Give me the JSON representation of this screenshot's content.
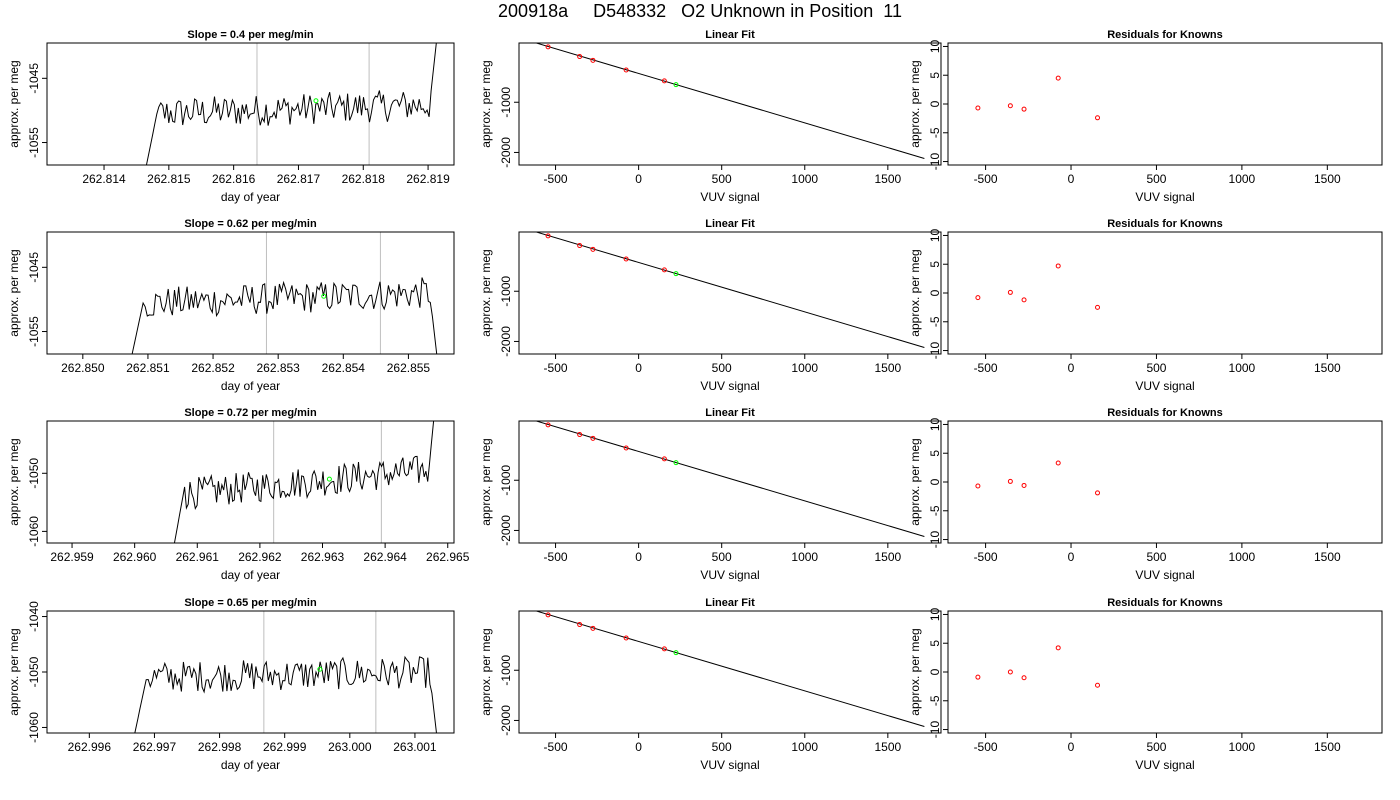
{
  "title": "200918a     D548332   O2 Unknown in Position  11",
  "colors": {
    "line": "#000000",
    "vline": "#bebebe",
    "known": "#ff0000",
    "unknown": "#00ff00"
  },
  "chart_data": [
    {
      "type": "line",
      "title": "Slope =  0.4  per meg/min",
      "xlabel": "day of year",
      "ylabel": "approx. per meg",
      "xlim": [
        262.81312,
        262.8194
      ],
      "ylim": [
        -1058.5,
        -1039.5
      ],
      "xticks": [
        "262.814",
        "262.815",
        "262.816",
        "262.817",
        "262.818",
        "262.819"
      ],
      "yticks": [
        "-1045",
        "-1055"
      ],
      "vlines": [
        262.81636,
        262.81809
      ],
      "start": 262.8146,
      "end": 262.8192,
      "base": -1049.8,
      "drift": 1.5,
      "marker": {
        "x": 262.81727,
        "y": -1048.5
      }
    },
    {
      "type": "line",
      "title": "Slope =  0.62  per meg/min",
      "xlabel": "day of year",
      "ylabel": "approx. per meg",
      "xlim": [
        262.84945,
        262.8557
      ],
      "ylim": [
        -1058.5,
        -1039.5
      ],
      "xticks": [
        "262.850",
        "262.851",
        "262.852",
        "262.853",
        "262.854",
        "262.855"
      ],
      "yticks": [
        "-1045",
        "-1055"
      ],
      "vlines": [
        262.85282,
        262.85457
      ],
      "start": 262.8507,
      "end": 262.85553,
      "base": -1049.8,
      "drift": 1.8,
      "marker": {
        "x": 262.8537,
        "y": -1049.5
      }
    },
    {
      "type": "line",
      "title": "Slope =  0.72  per meg/min",
      "xlabel": "day of year",
      "ylabel": "approx. per meg",
      "xlim": [
        262.9586,
        262.9651
      ],
      "ylim": [
        -1062,
        -1041
      ],
      "xticks": [
        "262.959",
        "262.960",
        "262.961",
        "262.962",
        "262.963",
        "262.964",
        "262.965"
      ],
      "yticks": [
        "-1050",
        "-1060"
      ],
      "vlines": [
        262.96222,
        262.96394
      ],
      "start": 262.9606,
      "end": 262.96485,
      "base": -1051.5,
      "drift": 4.5,
      "marker": {
        "x": 262.96311,
        "y": -1051.0
      }
    },
    {
      "type": "line",
      "title": "Slope =  0.65  per meg/min",
      "xlabel": "day of year",
      "ylabel": "approx. per meg",
      "xlim": [
        262.99535,
        263.0016
      ],
      "ylim": [
        -1061,
        -1039
      ],
      "xticks": [
        "262.996",
        "262.997",
        "262.998",
        "262.999",
        "263.000",
        "263.001"
      ],
      "yticks": [
        "-1040",
        "-1050",
        "-1060"
      ],
      "vlines": [
        262.99868,
        263.0004
      ],
      "start": 262.99665,
      "end": 263.00142,
      "base": -1050.5,
      "drift": 1.0,
      "marker": {
        "x": 262.99954,
        "y": -1049.5
      }
    },
    {
      "type": "scatter",
      "title": "Linear Fit",
      "xlabel": "VUV signal",
      "ylabel": "approx. per meg",
      "xlim": [
        -720,
        1820
      ],
      "ylim": [
        -2250,
        180
      ],
      "xticks": [
        -500,
        0,
        500,
        1000,
        1500
      ],
      "yticks": [
        -1000,
        -2000
      ],
      "fit": {
        "x": [
          -620,
          1720
        ],
        "y": [
          184,
          -2120
        ]
      },
      "knowns": {
        "x": [
          -545,
          -355,
          -275,
          -75,
          155
        ],
        "y": [
          102,
          -90,
          -165,
          -357,
          -575
        ]
      },
      "unknown": {
        "x": 225,
        "y": -650
      }
    },
    {
      "type": "scatter",
      "title": "Linear Fit",
      "xlabel": "VUV signal",
      "ylabel": "approx. per meg",
      "xlim": [
        -720,
        1820
      ],
      "ylim": [
        -2250,
        180
      ],
      "xticks": [
        -500,
        0,
        500,
        1000,
        1500
      ],
      "yticks": [
        -1000,
        -2000
      ],
      "fit": {
        "x": [
          -620,
          1720
        ],
        "y": [
          184,
          -2120
        ]
      },
      "knowns": {
        "x": [
          -545,
          -355,
          -275,
          -75,
          155
        ],
        "y": [
          102,
          -90,
          -165,
          -357,
          -575
        ]
      },
      "unknown": {
        "x": 225,
        "y": -650
      }
    },
    {
      "type": "scatter",
      "title": "Linear Fit",
      "xlabel": "VUV signal",
      "ylabel": "approx. per meg",
      "xlim": [
        -720,
        1820
      ],
      "ylim": [
        -2250,
        180
      ],
      "xticks": [
        -500,
        0,
        500,
        1000,
        1500
      ],
      "yticks": [
        -1000,
        -2000
      ],
      "fit": {
        "x": [
          -620,
          1720
        ],
        "y": [
          184,
          -2120
        ]
      },
      "knowns": {
        "x": [
          -545,
          -355,
          -275,
          -75,
          155
        ],
        "y": [
          102,
          -90,
          -165,
          -357,
          -575
        ]
      },
      "unknown": {
        "x": 225,
        "y": -650
      }
    },
    {
      "type": "scatter",
      "title": "Linear Fit",
      "xlabel": "VUV signal",
      "ylabel": "approx. per meg",
      "xlim": [
        -720,
        1820
      ],
      "ylim": [
        -2250,
        180
      ],
      "xticks": [
        -500,
        0,
        500,
        1000,
        1500
      ],
      "yticks": [
        -1000,
        -2000
      ],
      "fit": {
        "x": [
          -620,
          1720
        ],
        "y": [
          184,
          -2120
        ]
      },
      "knowns": {
        "x": [
          -545,
          -355,
          -275,
          -75,
          155
        ],
        "y": [
          102,
          -90,
          -165,
          -357,
          -575
        ]
      },
      "unknown": {
        "x": 225,
        "y": -650
      }
    },
    {
      "type": "scatter",
      "title": "Residuals for Knowns",
      "xlabel": "VUV signal",
      "ylabel": "approx. per meg",
      "xlim": [
        -720,
        1820
      ],
      "ylim": [
        -10.6,
        10.6
      ],
      "xticks": [
        -500,
        0,
        500,
        1000,
        1500
      ],
      "yticks": [
        -10,
        -5,
        0,
        5,
        10
      ],
      "points": {
        "x": [
          -545,
          -355,
          -275,
          -75,
          155
        ],
        "y": [
          -0.7,
          -0.3,
          -0.9,
          4.5,
          -2.4
        ]
      }
    },
    {
      "type": "scatter",
      "title": "Residuals for Knowns",
      "xlabel": "VUV signal",
      "ylabel": "approx. per meg",
      "xlim": [
        -720,
        1820
      ],
      "ylim": [
        -10.6,
        10.6
      ],
      "xticks": [
        -500,
        0,
        500,
        1000,
        1500
      ],
      "yticks": [
        -10,
        -5,
        0,
        5,
        10
      ],
      "points": {
        "x": [
          -545,
          -355,
          -275,
          -75,
          155
        ],
        "y": [
          -0.8,
          0.1,
          -1.2,
          4.7,
          -2.5
        ]
      }
    },
    {
      "type": "scatter",
      "title": "Residuals for Knowns",
      "xlabel": "VUV signal",
      "ylabel": "approx. per meg",
      "xlim": [
        -720,
        1820
      ],
      "ylim": [
        -10.6,
        10.6
      ],
      "xticks": [
        -500,
        0,
        500,
        1000,
        1500
      ],
      "yticks": [
        -10,
        -5,
        0,
        5,
        10
      ],
      "points": {
        "x": [
          -545,
          -355,
          -275,
          -75,
          155
        ],
        "y": [
          -0.7,
          0.1,
          -0.6,
          3.3,
          -1.9
        ]
      }
    },
    {
      "type": "scatter",
      "title": "Residuals for Knowns",
      "xlabel": "VUV signal",
      "ylabel": "approx. per meg",
      "xlim": [
        -720,
        1820
      ],
      "ylim": [
        -10.6,
        10.6
      ],
      "xticks": [
        -500,
        0,
        500,
        1000,
        1500
      ],
      "yticks": [
        -10,
        -5,
        0,
        5,
        10
      ],
      "points": {
        "x": [
          -545,
          -355,
          -275,
          -75,
          155
        ],
        "y": [
          -0.9,
          0.0,
          -1.0,
          4.2,
          -2.3
        ]
      }
    }
  ]
}
